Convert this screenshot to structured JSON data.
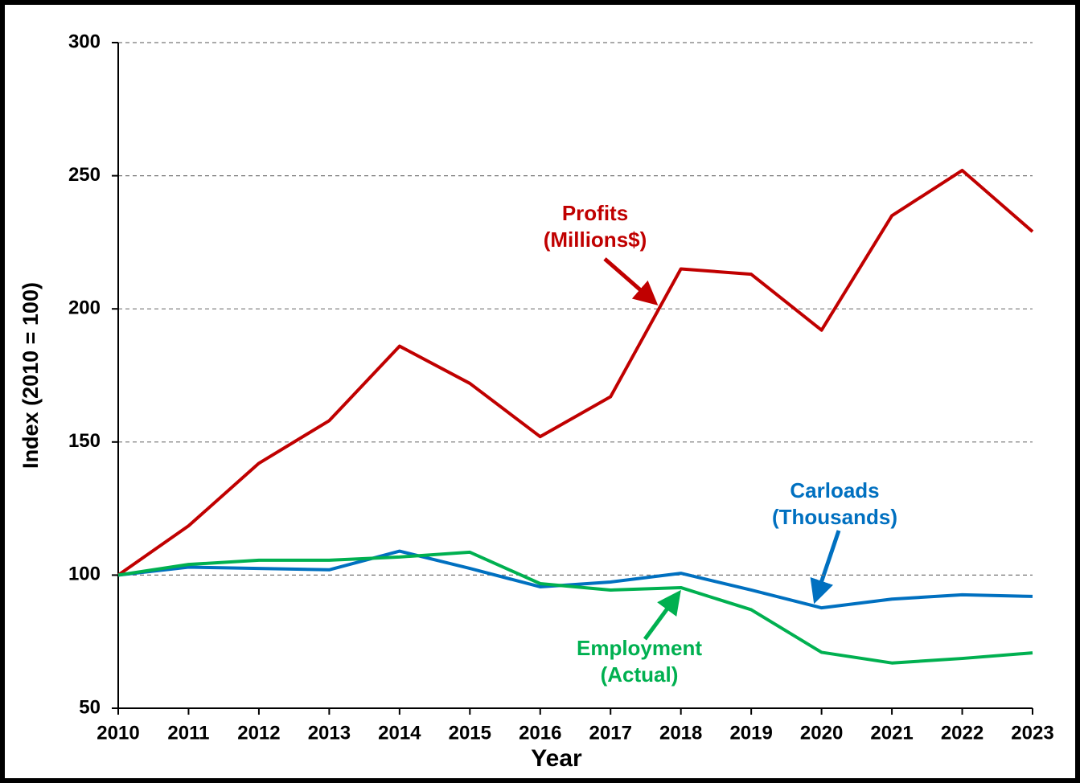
{
  "chart_data": {
    "type": "line",
    "x": [
      2010,
      2011,
      2012,
      2013,
      2014,
      2015,
      2016,
      2017,
      2018,
      2019,
      2020,
      2021,
      2022,
      2023
    ],
    "xlim": [
      2010,
      2023
    ],
    "xticks": [
      2010,
      2011,
      2012,
      2013,
      2014,
      2015,
      2016,
      2017,
      2018,
      2019,
      2020,
      2021,
      2022,
      2023
    ],
    "ylim": [
      50,
      300
    ],
    "yticks": [
      50,
      100,
      150,
      200,
      250,
      300
    ],
    "grid": true,
    "x_label": "Year",
    "y_label": "Index (2010 = 100)",
    "series": [
      {
        "name": "Profits (Millions$)",
        "color": "#c00000",
        "values": [
          100,
          118.5,
          142,
          158,
          186,
          172,
          152,
          167,
          215,
          213,
          192,
          235,
          252,
          229
        ]
      },
      {
        "name": "Carloads (Thousands)",
        "color": "#0070c0",
        "values": [
          100,
          103,
          102.5,
          102,
          109,
          102.5,
          95.6,
          97.4,
          100.7,
          94.4,
          87.7,
          91,
          92.6,
          92
        ]
      },
      {
        "name": "Employment (Actual)",
        "color": "#00b050",
        "values": [
          100,
          104,
          105.6,
          105.6,
          106.8,
          108.6,
          96.8,
          94.4,
          95.3,
          87,
          71,
          67,
          68.7,
          70.8
        ]
      }
    ],
    "annotations": [
      {
        "lines": [
          "Profits",
          "(Millions$)"
        ],
        "color": "#c00000"
      },
      {
        "lines": [
          "Carloads",
          "(Thousands)"
        ],
        "color": "#0070c0"
      },
      {
        "lines": [
          "Employment",
          "(Actual)"
        ],
        "color": "#00b050"
      }
    ]
  }
}
